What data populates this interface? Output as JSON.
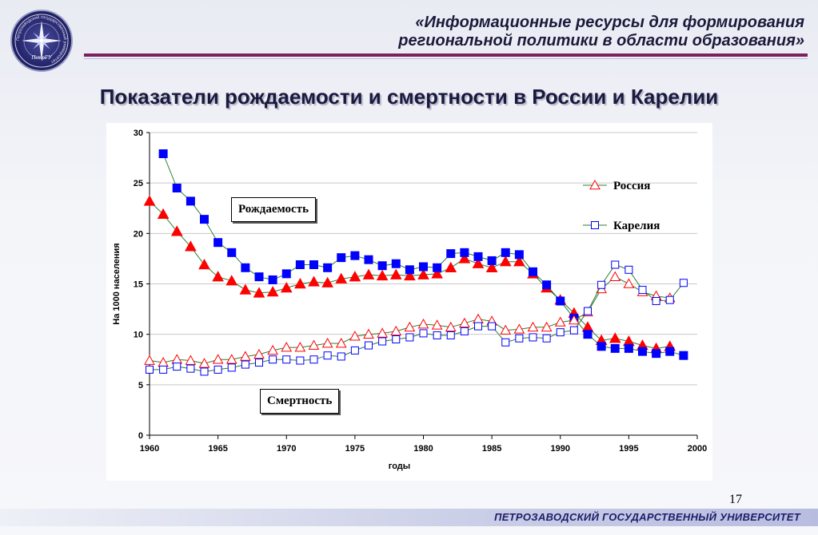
{
  "header": {
    "line1": "«Информационные ресурсы для формирования",
    "line2": "региональной политики в области образования»"
  },
  "logo": {
    "ring_text": "Петрозаводский государственный университет",
    "emblem_text": "ПетрГУ",
    "icon": "star-compass-icon"
  },
  "slide_title": "Показатели рождаемости и смертности в России и Карелии",
  "labels": {
    "birth": "Рождаемость",
    "death": "Смертность"
  },
  "page_number": "17",
  "footer": "ПЕТРОЗАВОДСКИЙ ГОСУДАРСТВЕННЫЙ УНИВЕРСИТЕТ",
  "colors": {
    "russia": "#ff0000",
    "karelia": "#0000ff",
    "line": "#2e7d32",
    "accent_rule": "#7a1f62"
  },
  "chart_data": {
    "type": "line",
    "xlabel": "годы",
    "ylabel": "На 1000 населения",
    "xlim": [
      1960,
      2000
    ],
    "ylim": [
      0,
      30
    ],
    "x_ticks": [
      1960,
      1965,
      1970,
      1975,
      1980,
      1985,
      1990,
      1995,
      2000
    ],
    "y_ticks": [
      0,
      5,
      10,
      15,
      20,
      25,
      30
    ],
    "grid": "horizontal",
    "legend": {
      "position": "right",
      "entries": [
        "Россия",
        "Карелия"
      ]
    },
    "series": [
      {
        "name": "Россия",
        "marker": "filled-triangle",
        "metric": "Рождаемость",
        "x": [
          1960,
          1961,
          1962,
          1963,
          1964,
          1965,
          1966,
          1967,
          1968,
          1969,
          1970,
          1971,
          1972,
          1973,
          1974,
          1975,
          1976,
          1977,
          1978,
          1979,
          1980,
          1981,
          1982,
          1983,
          1984,
          1985,
          1986,
          1987,
          1988,
          1989,
          1990,
          1991,
          1992,
          1993,
          1994,
          1995,
          1996,
          1997,
          1998
        ],
        "y": [
          23.2,
          21.9,
          20.2,
          18.7,
          16.9,
          15.7,
          15.3,
          14.4,
          14.1,
          14.2,
          14.6,
          15.0,
          15.2,
          15.1,
          15.5,
          15.7,
          15.9,
          15.8,
          15.9,
          15.8,
          15.9,
          16.0,
          16.6,
          17.5,
          17.0,
          16.6,
          17.2,
          17.2,
          16.0,
          14.6,
          13.4,
          12.1,
          10.7,
          9.4,
          9.6,
          9.3,
          8.9,
          8.6,
          8.8
        ]
      },
      {
        "name": "Карелия",
        "marker": "filled-square",
        "metric": "Рождаемость",
        "x": [
          1961,
          1962,
          1963,
          1964,
          1965,
          1966,
          1967,
          1968,
          1969,
          1970,
          1971,
          1972,
          1973,
          1974,
          1975,
          1976,
          1977,
          1978,
          1979,
          1980,
          1981,
          1982,
          1983,
          1984,
          1985,
          1986,
          1987,
          1988,
          1989,
          1990,
          1991,
          1992,
          1993,
          1994,
          1995,
          1996,
          1997,
          1998,
          1999
        ],
        "y": [
          27.9,
          24.5,
          23.2,
          21.4,
          19.1,
          18.1,
          16.6,
          15.7,
          15.4,
          16.0,
          16.9,
          16.9,
          16.6,
          17.6,
          17.8,
          17.4,
          16.8,
          17.0,
          16.4,
          16.7,
          16.6,
          18.0,
          18.1,
          17.7,
          17.3,
          18.1,
          17.9,
          16.2,
          14.9,
          13.3,
          11.6,
          10.0,
          8.8,
          8.6,
          8.6,
          8.3,
          8.1,
          8.3,
          7.9
        ]
      },
      {
        "name": "Россия",
        "marker": "open-triangle",
        "metric": "Смертность",
        "x": [
          1960,
          1961,
          1962,
          1963,
          1964,
          1965,
          1966,
          1967,
          1968,
          1969,
          1970,
          1971,
          1972,
          1973,
          1974,
          1975,
          1976,
          1977,
          1978,
          1979,
          1980,
          1981,
          1982,
          1983,
          1984,
          1985,
          1986,
          1987,
          1988,
          1989,
          1990,
          1991,
          1992,
          1993,
          1994,
          1995,
          1996,
          1997,
          1998
        ],
        "y": [
          7.4,
          7.2,
          7.5,
          7.4,
          7.1,
          7.5,
          7.5,
          7.8,
          8.0,
          8.4,
          8.7,
          8.7,
          8.9,
          9.1,
          9.1,
          9.8,
          10.0,
          10.1,
          10.3,
          10.7,
          11.0,
          10.9,
          10.7,
          11.1,
          11.5,
          11.3,
          10.4,
          10.5,
          10.7,
          10.7,
          11.2,
          11.4,
          12.2,
          14.5,
          15.7,
          15.0,
          14.2,
          13.8,
          13.6
        ]
      },
      {
        "name": "Карелия",
        "marker": "open-square",
        "metric": "Смертность",
        "x": [
          1960,
          1961,
          1962,
          1963,
          1964,
          1965,
          1966,
          1967,
          1968,
          1969,
          1970,
          1971,
          1972,
          1973,
          1974,
          1975,
          1976,
          1977,
          1978,
          1979,
          1980,
          1981,
          1982,
          1983,
          1984,
          1985,
          1986,
          1987,
          1988,
          1989,
          1990,
          1991,
          1992,
          1993,
          1994,
          1995,
          1996,
          1997,
          1998,
          1999
        ],
        "y": [
          6.5,
          6.5,
          6.8,
          6.6,
          6.3,
          6.5,
          6.7,
          7.0,
          7.2,
          7.5,
          7.5,
          7.4,
          7.5,
          7.9,
          7.8,
          8.4,
          8.9,
          9.3,
          9.5,
          9.7,
          10.1,
          9.9,
          9.9,
          10.3,
          10.8,
          10.8,
          9.2,
          9.6,
          9.7,
          9.6,
          10.2,
          10.4,
          12.3,
          14.9,
          16.9,
          16.4,
          14.4,
          13.3,
          13.4,
          15.1
        ]
      }
    ]
  }
}
